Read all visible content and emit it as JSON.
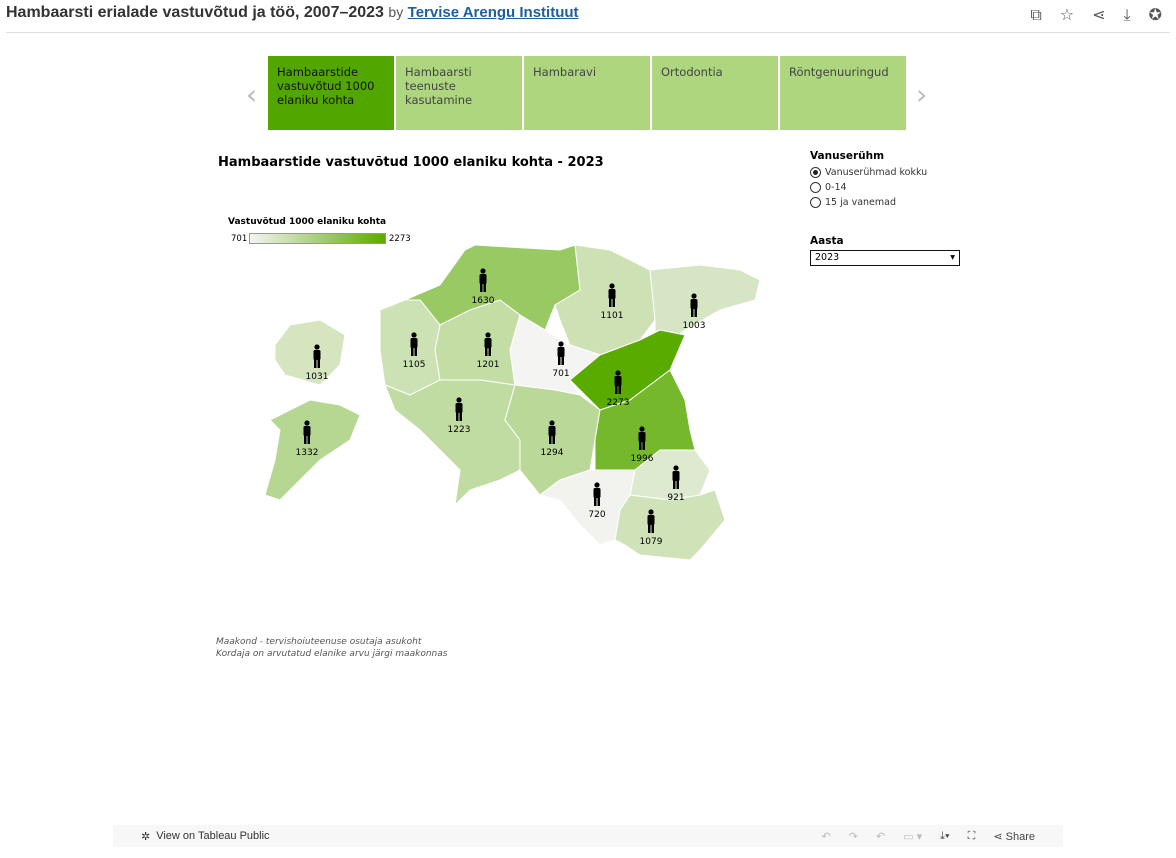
{
  "header": {
    "title": "Hambaarsti erialade vastuvõtud ja töö, 2007–2023",
    "by": "by",
    "author": "Tervise Arengu Instituut"
  },
  "tabs": [
    {
      "label": "Hambaarstide vastuvõtud 1000 elaniku kohta",
      "active": true
    },
    {
      "label": "Hambaarsti teenuste kasutamine"
    },
    {
      "label": "Hambaravi"
    },
    {
      "label": "Ortodontia"
    },
    {
      "label": "Röntgenuuringud"
    }
  ],
  "chart": {
    "title": "Hambaarstide vastuvõtud 1000 elaniku kohta - 2023",
    "legend": {
      "title": "Vastuvõtud 1000 elaniku kohta",
      "min": "701",
      "max": "2273",
      "color_min": "#f4f4f2",
      "color_max": "#5aab00"
    }
  },
  "chart_data": {
    "type": "choropleth map",
    "unit": "Vastuvõtud 1000 elaniku kohta",
    "year": "2023",
    "regions": [
      {
        "name": "Harju",
        "value": 1630
      },
      {
        "name": "Lääne-Viru",
        "value": 1101
      },
      {
        "name": "Ida-Viru",
        "value": 1003
      },
      {
        "name": "Hiiu",
        "value": 1031
      },
      {
        "name": "Lääne",
        "value": 1105
      },
      {
        "name": "Rapla",
        "value": 1201
      },
      {
        "name": "Järva",
        "value": 701
      },
      {
        "name": "Jõgeva",
        "value": 2273
      },
      {
        "name": "Saare",
        "value": 1332
      },
      {
        "name": "Pärnu",
        "value": 1223
      },
      {
        "name": "Viljandi",
        "value": 1294
      },
      {
        "name": "Tartu",
        "value": 1996
      },
      {
        "name": "Põlva",
        "value": 921
      },
      {
        "name": "Valga",
        "value": 720
      },
      {
        "name": "Võru",
        "value": 1079
      }
    ]
  },
  "filters": {
    "age_title": "Vanuserühm",
    "age_options": [
      "Vanuserühmad kokku",
      "0-14",
      "15 ja vanemad"
    ],
    "age_selected": 0,
    "year_title": "Aasta",
    "year_value": "2023"
  },
  "notes": [
    "Maakond - tervishoiuteenuse osutaja asukoht",
    "Kordaja on arvutatud elanike arvu järgi maakonnas"
  ],
  "footer": {
    "view": "View on Tableau Public",
    "share": "Share"
  }
}
